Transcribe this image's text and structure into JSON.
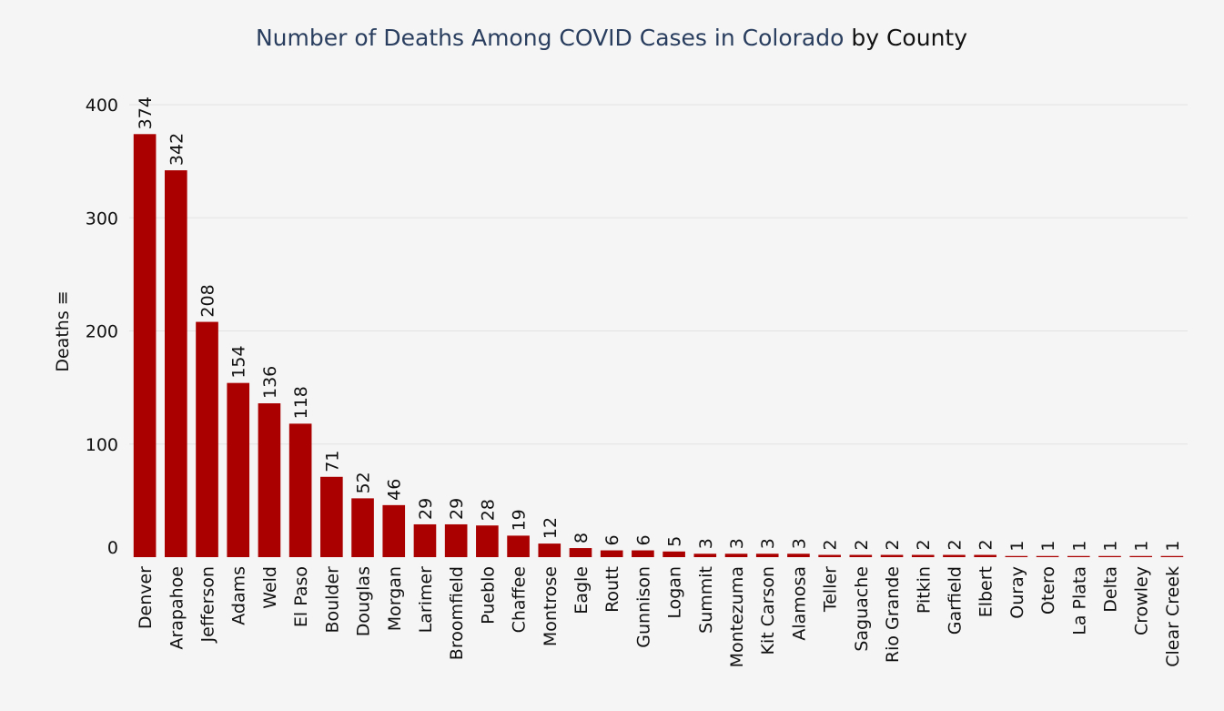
{
  "chart_data": {
    "type": "bar",
    "title": "Number of Deaths Among COVID Cases in Colorado",
    "title_suffix": "by County",
    "xlabel": "",
    "ylabel": "Deaths",
    "ylim": [
      0,
      400
    ],
    "yticks": [
      0,
      100,
      200,
      300,
      400
    ],
    "grid": true,
    "bar_color": "#aa0000",
    "categories": [
      "Denver",
      "Arapahoe",
      "Jefferson",
      "Adams",
      "Weld",
      "El Paso",
      "Boulder",
      "Douglas",
      "Morgan",
      "Larimer",
      "Broomfield",
      "Pueblo",
      "Chaffee",
      "Montrose",
      "Eagle",
      "Routt",
      "Gunnison",
      "Logan",
      "Summit",
      "Montezuma",
      "Kit Carson",
      "Alamosa",
      "Teller",
      "Saguache",
      "Rio Grande",
      "Pitkin",
      "Garfield",
      "Elbert",
      "Ouray",
      "Otero",
      "La Plata",
      "Delta",
      "Crowley",
      "Clear Creek"
    ],
    "values": [
      374,
      342,
      208,
      154,
      136,
      118,
      71,
      52,
      46,
      29,
      29,
      28,
      19,
      12,
      8,
      6,
      6,
      5,
      3,
      3,
      3,
      3,
      2,
      2,
      2,
      2,
      2,
      2,
      1,
      1,
      1,
      1,
      1,
      1
    ]
  }
}
